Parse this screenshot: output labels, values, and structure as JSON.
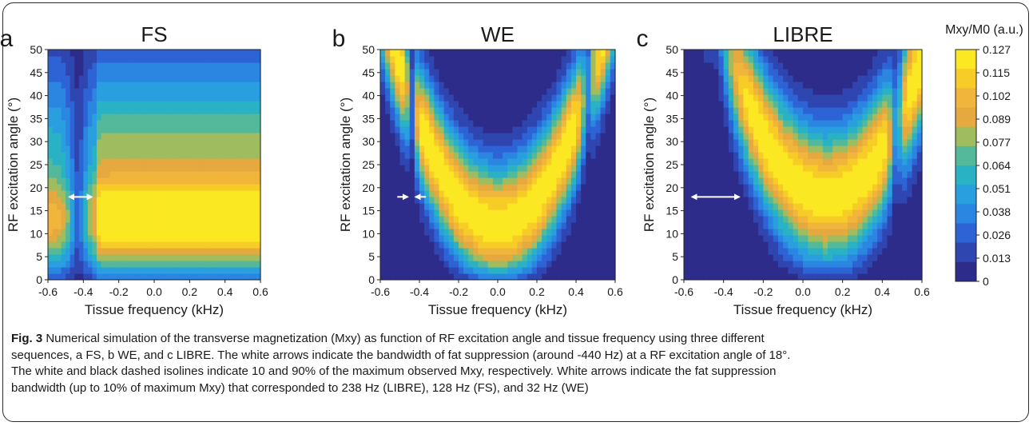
{
  "figure": {
    "colorbar_title": "Mxy/M0 (a.u.)",
    "caption": {
      "label": "Fig. 3",
      "lines": [
        "Numerical simulation of the transverse magnetization (Mxy) as function of RF excitation angle and tissue frequency using three different",
        "sequences, a FS, b WE, and c LIBRE. The white arrows indicate the bandwidth of fat suppression (around -440 Hz) at a RF excitation angle of 18°.",
        "The white and black dashed isolines indicate 10 and 90% of the maximum observed Mxy, respectively. White arrows indicate the fat suppression",
        "bandwidth (up to 10% of maximum Mxy) that corresponded to 238 Hz (LIBRE), 128 Hz (FS), and 32 Hz (WE)"
      ]
    }
  },
  "chart_data": [
    {
      "type": "heatmap",
      "panel_letter": "a",
      "title": "FS",
      "xlabel": "Tissue frequency (kHz)",
      "ylabel": "RF excitation angle (°)",
      "xlim": [
        -0.6,
        0.6
      ],
      "ylim": [
        0,
        50
      ],
      "xticks": [
        "-0.6",
        "-0.4",
        "-0.2",
        "0.0",
        "0.2",
        "0.4",
        "0.6"
      ],
      "yticks": [
        "0",
        "5",
        "10",
        "15",
        "20",
        "25",
        "30",
        "35",
        "40",
        "45",
        "50"
      ],
      "z_max": 0.127,
      "fat_suppression_arrow": {
        "angle_deg": 18,
        "from_khz": -0.48,
        "to_khz": -0.352,
        "bandwidth_hz": 128
      },
      "isolines": [
        {
          "level": "10% of max Mxy",
          "color": "white"
        },
        {
          "level": "90% of max Mxy",
          "color": "black"
        }
      ]
    },
    {
      "type": "heatmap",
      "panel_letter": "b",
      "title": "WE",
      "xlabel": "Tissue frequency (kHz)",
      "ylabel": "RF excitation angle (°)",
      "xlim": [
        -0.6,
        0.6
      ],
      "ylim": [
        0,
        50
      ],
      "xticks": [
        "-0.6",
        "-0.4",
        "-0.2",
        "0.0",
        "0.2",
        "0.4",
        "0.6"
      ],
      "yticks": [
        "0",
        "5",
        "10",
        "15",
        "20",
        "25",
        "30",
        "35",
        "40",
        "45",
        "50"
      ],
      "z_max": 0.127,
      "fat_suppression_arrow": {
        "angle_deg": 18,
        "from_khz": -0.456,
        "to_khz": -0.424,
        "bandwidth_hz": 32
      },
      "isolines": [
        {
          "level": "10% of max Mxy",
          "color": "white"
        },
        {
          "level": "90% of max Mxy",
          "color": "black"
        }
      ]
    },
    {
      "type": "heatmap",
      "panel_letter": "c",
      "title": "LIBRE",
      "xlabel": "Tissue frequency (kHz)",
      "ylabel": "RF excitation angle (°)",
      "xlim": [
        -0.6,
        0.6
      ],
      "ylim": [
        0,
        50
      ],
      "xticks": [
        "-0.6",
        "-0.4",
        "-0.2",
        "0.0",
        "0.2",
        "0.4",
        "0.6"
      ],
      "yticks": [
        "0",
        "5",
        "10",
        "15",
        "20",
        "25",
        "30",
        "35",
        "40",
        "45",
        "50"
      ],
      "z_max": 0.127,
      "fat_suppression_arrow": {
        "angle_deg": 18,
        "from_khz": -0.559,
        "to_khz": -0.321,
        "bandwidth_hz": 238
      },
      "isolines": [
        {
          "level": "10% of max Mxy",
          "color": "white"
        },
        {
          "level": "90% of max Mxy",
          "color": "black"
        }
      ]
    }
  ],
  "colorbar": {
    "ticks": [
      "0.127",
      "0.115",
      "0.102",
      "0.089",
      "0.077",
      "0.064",
      "0.051",
      "0.038",
      "0.026",
      "0.013",
      "0"
    ],
    "colors": [
      "#fbe823",
      "#f7cc27",
      "#f0b53a",
      "#e5a93f",
      "#9fbc5f",
      "#53b99a",
      "#29b2c3",
      "#2a9fe0",
      "#2b86e2",
      "#2d63d4",
      "#2f45b0",
      "#2e2c8a"
    ]
  }
}
